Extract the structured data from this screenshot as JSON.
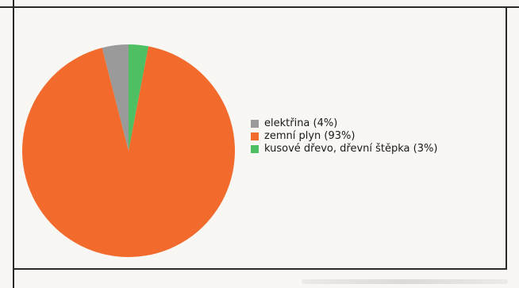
{
  "chart_data": {
    "type": "pie",
    "title": "",
    "legend_placement": "right",
    "slices": [
      {
        "label": "elektřina (4%)",
        "value": 4,
        "color": "#9a9a9a"
      },
      {
        "label": "zemní plyn (93%)",
        "value": 93,
        "color": "#f26b2d"
      },
      {
        "label": "kusové dřevo, dřevní štěpka (3%)",
        "value": 3,
        "color": "#4fbf63"
      }
    ]
  }
}
